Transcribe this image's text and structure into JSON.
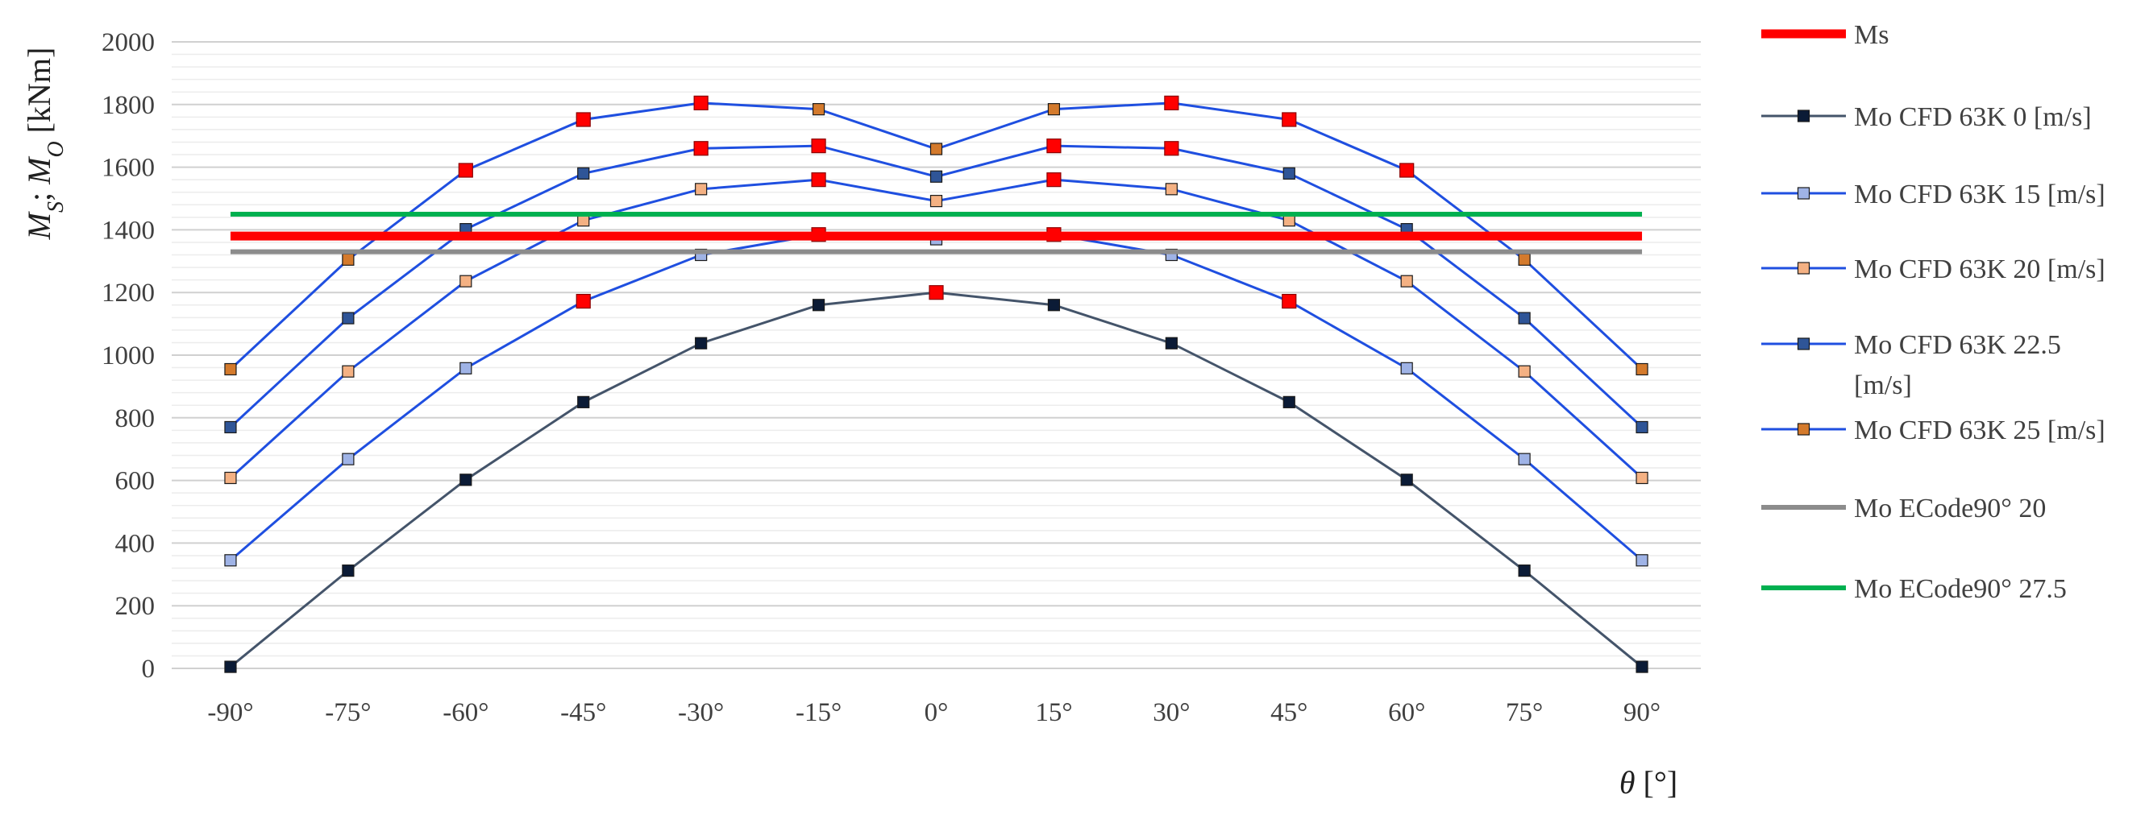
{
  "chart_data": {
    "type": "line",
    "x": [
      "-90°",
      "-75°",
      "-60°",
      "-45°",
      "-30°",
      "-15°",
      "0°",
      "15°",
      "30°",
      "45°",
      "60°",
      "75°",
      "90°"
    ],
    "ylim": [
      0,
      2000
    ],
    "yticks": [
      0,
      200,
      400,
      600,
      800,
      1000,
      1200,
      1400,
      1600,
      1800,
      2000
    ],
    "xlabel": "θ [°]",
    "ylabel": "M_S; M_O [kNm]",
    "grid": true,
    "legend_position": "right",
    "series": [
      {
        "name": "Ms",
        "color": "#ff0000",
        "style": "thick-line",
        "values": [
          1380,
          1380,
          1380,
          1380,
          1380,
          1380,
          1380,
          1380,
          1380,
          1380,
          1380,
          1380,
          1380
        ]
      },
      {
        "name": "Mo CFD 63K 0 [m/s]",
        "line_color": "#44546a",
        "marker_color": "#0b1b36",
        "values": [
          5,
          312,
          602,
          850,
          1038,
          1160,
          1200,
          1160,
          1038,
          850,
          602,
          312,
          5
        ]
      },
      {
        "name": "Mo CFD 63K 15  [m/s]",
        "line_color": "#1f4fe0",
        "marker_color": "#9fb3e6",
        "values": [
          345,
          668,
          958,
          1172,
          1320,
          1385,
          1370,
          1385,
          1320,
          1172,
          958,
          668,
          345
        ]
      },
      {
        "name": "Mo CFD 63K 20 [m/s]",
        "line_color": "#1f4fe0",
        "marker_color": "#f4b183",
        "values": [
          608,
          948,
          1236,
          1430,
          1530,
          1560,
          1492,
          1560,
          1530,
          1430,
          1236,
          948,
          608
        ]
      },
      {
        "name": "Mo CFD 63K 22.5 [m/s]",
        "line_color": "#1f4fe0",
        "marker_color": "#2f5597",
        "values": [
          770,
          1118,
          1402,
          1580,
          1660,
          1668,
          1570,
          1668,
          1660,
          1580,
          1402,
          1118,
          770
        ]
      },
      {
        "name": "Mo CFD 63K 25 [m/s]",
        "line_color": "#1f4fe0",
        "marker_color": "#d47a2c",
        "values": [
          955,
          1305,
          1590,
          1752,
          1805,
          1785,
          1658,
          1785,
          1805,
          1752,
          1590,
          1305,
          955
        ]
      },
      {
        "name": "Mo ECode90° 20",
        "color": "#8c8c8c",
        "style": "line",
        "values": [
          1330,
          1330,
          1330,
          1330,
          1330,
          1330,
          1330,
          1330,
          1330,
          1330,
          1330,
          1330,
          1330
        ]
      },
      {
        "name": "Mo ECode90° 27.5",
        "color": "#00b050",
        "style": "line",
        "values": [
          1450,
          1450,
          1450,
          1450,
          1450,
          1450,
          1450,
          1450,
          1450,
          1450,
          1450,
          1450,
          1450
        ]
      }
    ],
    "red_markers": [
      {
        "series": "Mo CFD 63K 15  [m/s]",
        "x": [
          "-15°",
          "15°"
        ]
      },
      {
        "series": "Mo CFD 63K 22.5 [m/s]",
        "x": [
          "-30°",
          "-15°",
          "15°",
          "30°"
        ]
      },
      {
        "series": "Mo CFD 63K 25 [m/s]",
        "x": [
          "-60°",
          "-45°",
          "-30°",
          "30°",
          "45°",
          "60°"
        ]
      },
      {
        "series": "Mo CFD 63K 20 [m/s]",
        "x": [
          "-15°",
          "15°"
        ]
      },
      {
        "series": "Mo CFD 63K 15  [m/s]",
        "x": [
          "-45°",
          "45°"
        ]
      },
      {
        "series": "Mo CFD 63K 0 [m/s]",
        "x": [
          "0°"
        ]
      }
    ]
  }
}
